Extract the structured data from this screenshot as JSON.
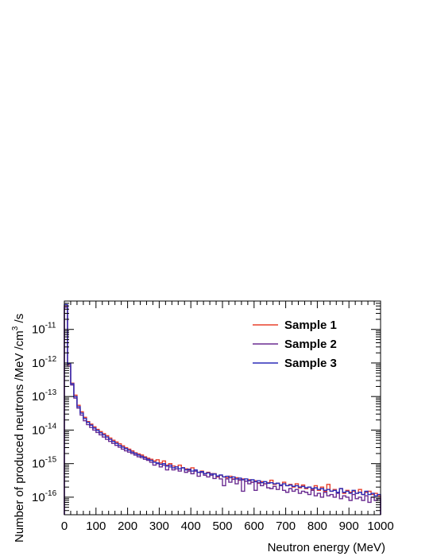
{
  "chart_data": {
    "type": "line",
    "title": "",
    "xlabel": "Neutron energy (MeV)",
    "ylabel": "Number of produced neutrons /MeV /cm",
    "ylabel_sup": "3",
    "ylabel_tail": " /s",
    "xlim": [
      0,
      1000
    ],
    "ylim": [
      3e-17,
      7e-11
    ],
    "yscale": "log",
    "grid": false,
    "legend_position": "top-right",
    "x_ticks": [
      0,
      100,
      200,
      300,
      400,
      500,
      600,
      700,
      800,
      900,
      1000
    ],
    "x_tick_labels": [
      "0",
      "100",
      "200",
      "300",
      "400",
      "500",
      "600",
      "700",
      "800",
      "900",
      "1000"
    ],
    "y_ticks": [
      1e-16,
      1e-15,
      1e-14,
      1e-13,
      1e-12,
      1e-11
    ],
    "y_tick_labels": [
      "10^-16",
      "10^-15",
      "10^-14",
      "10^-13",
      "10^-12",
      "10^-11"
    ],
    "y_tick_exponents": [
      "-16",
      "-15",
      "-14",
      "-13",
      "-12",
      "-11"
    ],
    "bin_edges_start": 0,
    "bin_width": 10,
    "series": [
      {
        "name": "Sample 1",
        "color": "#e8412c",
        "values": [
          5e-11,
          9e-13,
          2.5e-13,
          1.1e-13,
          5.5e-14,
          3.5e-14,
          2.4e-14,
          1.8e-14,
          1.5e-14,
          1.25e-14,
          1.05e-14,
          9e-15,
          7.8e-15,
          6.8e-15,
          5.8e-15,
          5e-15,
          4.4e-15,
          3.9e-15,
          3.4e-15,
          3e-15,
          2.7e-15,
          2.4e-15,
          2.1e-15,
          1.95e-15,
          1.8e-15,
          1.6e-15,
          1.45e-15,
          1.35e-15,
          1.2e-15,
          1.3e-15,
          1.05e-15,
          1.2e-15,
          9e-16,
          1e-15,
          8.5e-16,
          8e-16,
          9e-16,
          7.5e-16,
          7e-16,
          6.5e-16,
          7.5e-16,
          6e-16,
          5.5e-16,
          6e-16,
          5e-16,
          5.5e-16,
          4.5e-16,
          5e-16,
          4e-16,
          4.5e-16,
          4e-16,
          3.8e-16,
          4.2e-16,
          3.5e-16,
          3.8e-16,
          3.2e-16,
          3.5e-16,
          3e-16,
          3.3e-16,
          2.8e-16,
          3.1e-16,
          2.6e-16,
          2.9e-16,
          2.5e-16,
          2.7e-16,
          3.2e-16,
          2.4e-16,
          2.6e-16,
          2.3e-16,
          2.8e-16,
          2.2e-16,
          2.4e-16,
          2e-16,
          2.5e-16,
          1.9e-16,
          2.3e-16,
          1.8e-16,
          2e-16,
          1.7e-16,
          2.2e-16,
          1.6e-16,
          2e-16,
          1.5e-16,
          2.4e-16,
          1.5e-16,
          1.7e-16,
          1.4e-16,
          1.8e-16,
          1.3e-16,
          1.6e-16,
          1.4e-16,
          1.5e-16,
          1.3e-16,
          1.7e-16,
          1.2e-16,
          1.4e-16,
          1.5e-16,
          1.2e-16,
          1.3e-16,
          1.1e-16
        ]
      },
      {
        "name": "Sample 2",
        "color": "#6a2c91",
        "values": [
          4.5e-11,
          8e-13,
          2.2e-13,
          9e-14,
          4.5e-14,
          2.8e-14,
          1.9e-14,
          1.45e-14,
          1.2e-14,
          1e-14,
          8.5e-15,
          7.2e-15,
          6.2e-15,
          5.3e-15,
          4.6e-15,
          4e-15,
          3.5e-15,
          3.1e-15,
          2.7e-15,
          2.4e-15,
          2.2e-15,
          2e-15,
          1.8e-15,
          1.6e-15,
          1.5e-15,
          1.35e-15,
          1.25e-15,
          1.1e-15,
          9e-16,
          1e-15,
          8e-16,
          9e-16,
          6.5e-16,
          8e-16,
          6.5e-16,
          7e-16,
          6e-16,
          7.5e-16,
          5.5e-16,
          6e-16,
          5e-16,
          6e-16,
          4.2e-16,
          5.5e-16,
          4.5e-16,
          4e-16,
          5e-16,
          3.6e-16,
          4.2e-16,
          3.5e-16,
          2.2e-16,
          3.5e-16,
          2.8e-16,
          3.4e-16,
          2.5e-16,
          3.3e-16,
          1.5e-16,
          3e-16,
          2.5e-16,
          2.8e-16,
          1.6e-16,
          2.7e-16,
          2.2e-16,
          2.5e-16,
          1.9e-16,
          1.8e-16,
          2.1e-16,
          1.7e-16,
          2.2e-16,
          1.6e-16,
          1.4e-16,
          1.8e-16,
          1.5e-16,
          1.7e-16,
          1.3e-16,
          1.5e-16,
          1.4e-16,
          1.2e-16,
          1.6e-16,
          1.1e-16,
          1.3e-16,
          1e-16,
          1.4e-16,
          1.1e-16,
          1.2e-16,
          1e-16,
          1.3e-16,
          9e-17,
          1.1e-16,
          1e-16,
          8e-17,
          1.2e-16,
          9e-17,
          1e-16,
          8e-17,
          1.1e-16,
          7e-17,
          1e-16,
          8e-17,
          9e-17
        ]
      },
      {
        "name": "Sample 3",
        "color": "#2c2cb8",
        "values": [
          5.5e-11,
          9.5e-13,
          2.4e-13,
          1e-13,
          5e-14,
          3.2e-14,
          2.2e-14,
          1.7e-14,
          1.4e-14,
          1.15e-14,
          9.8e-15,
          8.3e-15,
          7.2e-15,
          6.2e-15,
          5.3e-15,
          4.6e-15,
          4e-15,
          3.5e-15,
          3.1e-15,
          2.8e-15,
          2.5e-15,
          2.2e-15,
          2e-15,
          1.8e-15,
          1.65e-15,
          1.5e-15,
          1.35e-15,
          1.25e-15,
          1.1e-15,
          1.05e-15,
          9.5e-16,
          1e-15,
          8.5e-16,
          9e-16,
          7.5e-16,
          8e-16,
          7e-16,
          7.5e-16,
          6.5e-16,
          6.8e-16,
          6e-16,
          6.5e-16,
          5.5e-16,
          5.8e-16,
          5e-16,
          5.3e-16,
          4.6e-16,
          4.9e-16,
          4.3e-16,
          4.6e-16,
          4e-16,
          4.2e-16,
          3.8e-16,
          4e-16,
          3.5e-16,
          3.7e-16,
          3.3e-16,
          3.5e-16,
          3.1e-16,
          3.3e-16,
          2.9e-16,
          3.1e-16,
          2.7e-16,
          2.9e-16,
          2.6e-16,
          2.7e-16,
          2.5e-16,
          2.6e-16,
          2.3e-16,
          2.5e-16,
          2.2e-16,
          2.3e-16,
          2.1e-16,
          2.2e-16,
          2e-16,
          2.1e-16,
          1.9e-16,
          2e-16,
          1.8e-16,
          1.9e-16,
          1.7e-16,
          1.8e-16,
          1.6e-16,
          1.7e-16,
          1.5e-16,
          1.6e-16,
          1.4e-16,
          1.8e-16,
          1.4e-16,
          1.5e-16,
          1.3e-16,
          1.6e-16,
          1.3e-16,
          1.4e-16,
          1.2e-16,
          1.5e-16,
          1.2e-16,
          1.3e-16,
          1.1e-16,
          1.2e-16
        ]
      }
    ]
  }
}
